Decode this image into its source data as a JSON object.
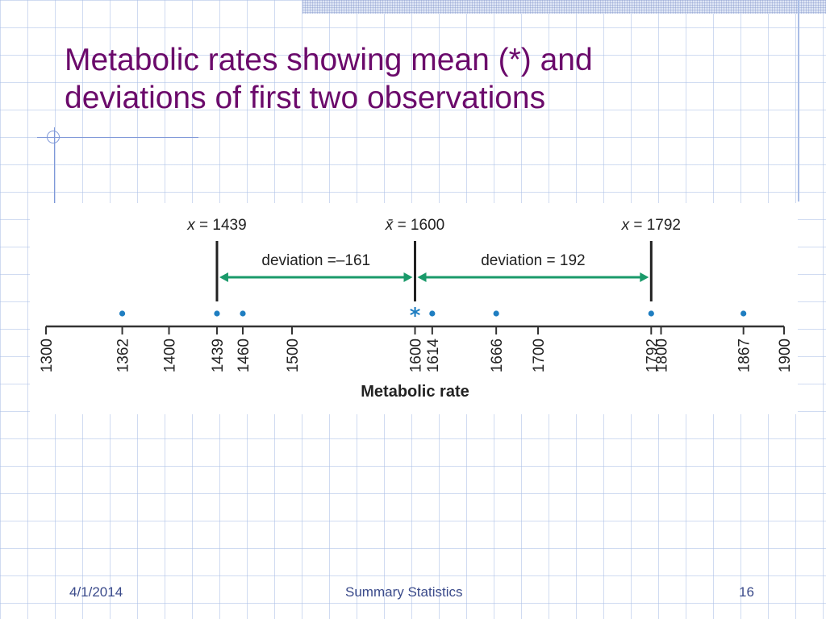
{
  "slide": {
    "title_line1": "Metabolic rates showing mean (*) and",
    "title_line2": "deviations of first two observations",
    "footer": {
      "date": "4/1/2014",
      "title": "Summary Statistics",
      "page": "16"
    }
  },
  "chart_data": {
    "type": "scatter",
    "xlabel": "Metabolic rate",
    "xlim": [
      1300,
      1900
    ],
    "ticks": [
      1300,
      1362,
      1400,
      1439,
      1460,
      1500,
      1600,
      1614,
      1666,
      1700,
      1792,
      1800,
      1867,
      1900
    ],
    "observations": [
      1362,
      1439,
      1460,
      1614,
      1666,
      1792,
      1867
    ],
    "mean": {
      "value": 1600,
      "marker": "*",
      "label_symbol": "x̄",
      "label_value": "= 1600"
    },
    "highlighted": [
      {
        "value": 1439,
        "label_symbol": "x",
        "label_value": "= 1439"
      },
      {
        "value": 1792,
        "label_symbol": "x",
        "label_value": "= 1792"
      }
    ],
    "deviations": [
      {
        "from": 1439,
        "to": 1600,
        "value": -161,
        "label": "deviation =–161"
      },
      {
        "from": 1600,
        "to": 1792,
        "value": 192,
        "label": "deviation = 192"
      }
    ],
    "colors": {
      "point": "#1f7ec1",
      "arrow": "#1a9a6a",
      "axis": "#333333",
      "text": "#222222"
    }
  }
}
